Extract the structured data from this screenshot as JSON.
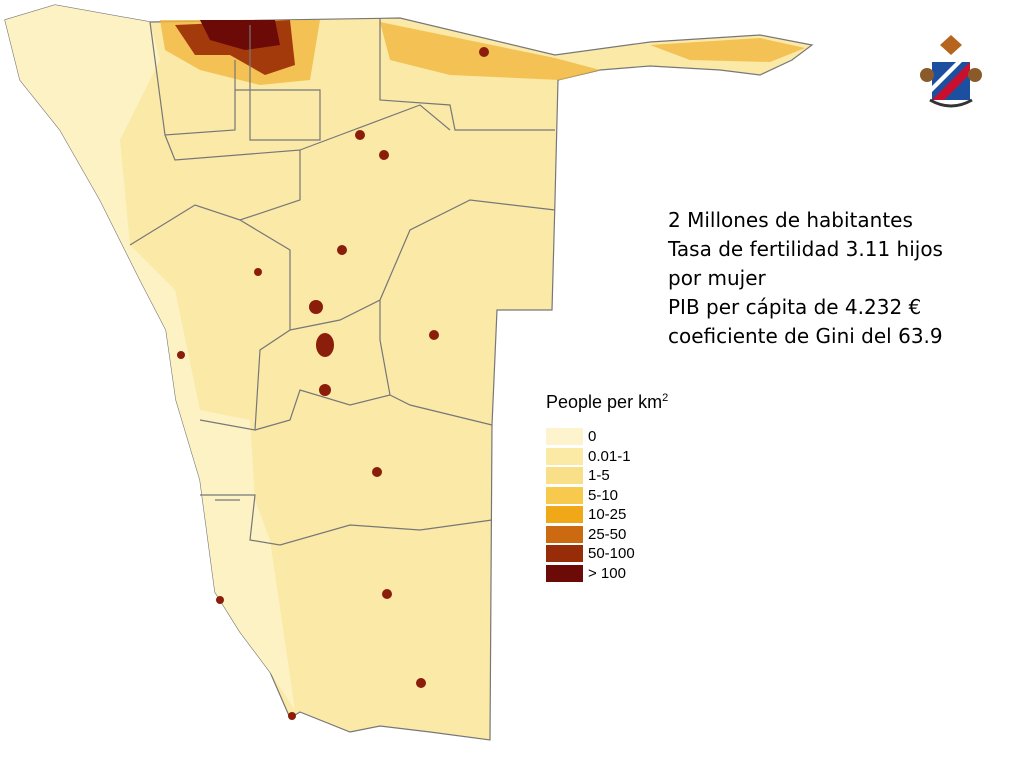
{
  "info_lines": [
    "2 Millones de habitantes",
    "Tasa de fertilidad 3.11 hijos por mujer",
    "PIB per cápita de 4.232 €",
    "coeficiente de Gini del 63.9"
  ],
  "legend": {
    "title": "People per km",
    "title_superscript": "2",
    "items": [
      {
        "label": "0",
        "color": "#fdf4cd"
      },
      {
        "label": "0.01-1",
        "color": "#fbeaa6"
      },
      {
        "label": "1-5",
        "color": "#f9df88"
      },
      {
        "label": "5-10",
        "color": "#f7ca4e"
      },
      {
        "label": "10-25",
        "color": "#f0a818"
      },
      {
        "label": "25-50",
        "color": "#cc6a12"
      },
      {
        "label": "50-100",
        "color": "#962d08"
      },
      {
        "label": "> 100",
        "color": "#6b0a06"
      }
    ]
  }
}
